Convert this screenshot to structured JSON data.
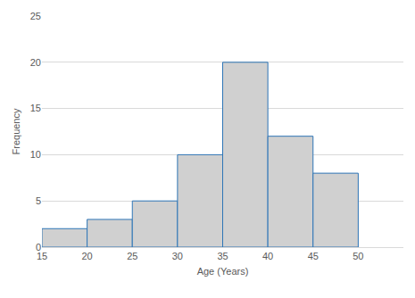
{
  "chart_data": {
    "type": "histogram",
    "x_label": "Age (Years)",
    "y_label": "Frequency",
    "bins": [
      15,
      20,
      25,
      30,
      35,
      40,
      45,
      50
    ],
    "values": [
      2,
      3,
      5,
      10,
      20,
      12,
      8
    ],
    "color": "#d0d0d0",
    "xlim": [
      15,
      55
    ],
    "xticks": [
      15,
      20,
      25,
      30,
      35,
      40,
      45,
      50
    ],
    "ylim": [
      0,
      25
    ],
    "yticks": [
      0,
      5,
      10,
      15,
      20,
      25
    ],
    "grid": true
  }
}
